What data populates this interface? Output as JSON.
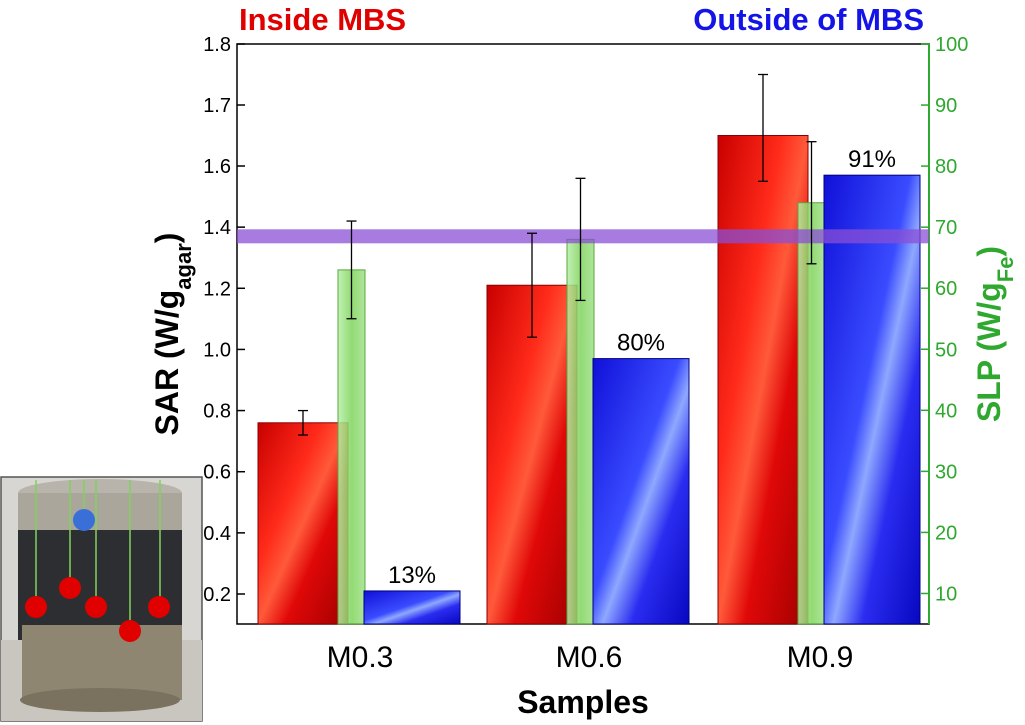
{
  "chart_data": {
    "type": "bar",
    "categories": [
      "M0.3",
      "M0.6",
      "M0.9"
    ],
    "xlabel": "Samples",
    "ylabel_left": {
      "main": "SAR (W/g",
      "sub": "agar",
      "close": ")"
    },
    "ylabel_right": {
      "main": "SLP (W/g",
      "sub": "Fe",
      "close": ")"
    },
    "ylim_left": [
      0.1,
      1.8
    ],
    "ylim_right": [
      5,
      100
    ],
    "yticks_left": [
      "0.2",
      "0.4",
      "0.6",
      "0.8",
      "1.0",
      "1.2",
      "1.4",
      "1.6",
      "1.7",
      "1.8"
    ],
    "yticks_left_values": [
      0.2,
      0.4,
      0.6,
      0.8,
      1.0,
      1.2,
      1.4,
      1.6,
      1.7,
      1.8
    ],
    "yticks_right": [
      10,
      20,
      30,
      40,
      50,
      60,
      70,
      80,
      90,
      100
    ],
    "series": [
      {
        "name": "Inside MBS",
        "axis": "left",
        "color": "#e00000",
        "values": [
          0.76,
          1.21,
          1.65
        ],
        "errors": [
          0.04,
          0.17,
          0.1
        ]
      },
      {
        "name": "SLP",
        "axis": "right",
        "color": "#7fd45a",
        "values": [
          63,
          68,
          74
        ],
        "errors": [
          8,
          10,
          10
        ]
      },
      {
        "name": "Outside of MBS",
        "axis": "left",
        "color": "#1414e6",
        "values": [
          0.21,
          0.97,
          1.57
        ],
        "errors": [
          0,
          0,
          0
        ]
      }
    ],
    "percent_labels": [
      "13%",
      "80%",
      "91%"
    ],
    "reference_band": {
      "value": 1.37,
      "color": "#8a4fd6"
    },
    "legend": {
      "inside": "Inside MBS",
      "outside": "Outside of MBS"
    },
    "colors": {
      "left_axis": "#000000",
      "right_axis": "#2ea82e",
      "inside_text": "#e00000",
      "outside_text": "#1414e6"
    }
  },
  "photo": {
    "description_icon": "sample-photo",
    "colors": {
      "top": "#a8a49a",
      "dark": "#2a2c30",
      "base": "#8f8672",
      "marker_red": "#e00000",
      "marker_blue": "#3a6fd8",
      "wire": "#7fd45a"
    }
  }
}
